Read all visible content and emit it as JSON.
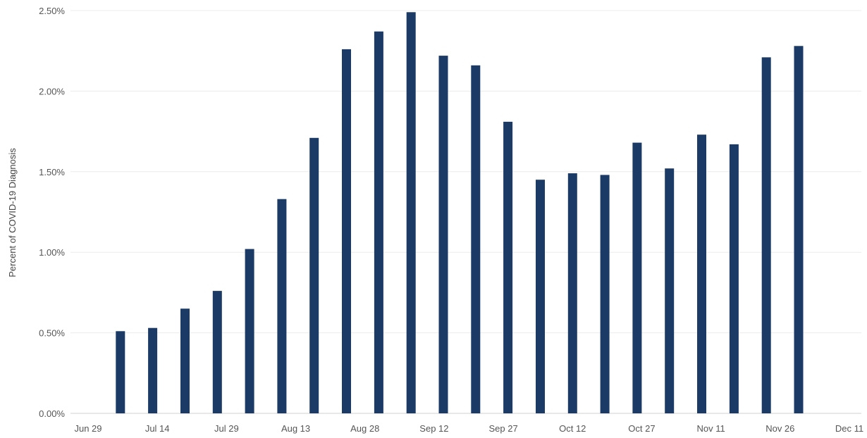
{
  "chart_data": {
    "type": "bar",
    "title": "",
    "xlabel": "",
    "ylabel": "Percent of COVID-19 Diagnosis",
    "y_ticks": [
      "0.00%",
      "0.50%",
      "1.00%",
      "1.50%",
      "2.00%",
      "2.50%"
    ],
    "x_ticks": [
      "Jun 29",
      "Jul 14",
      "Jul 29",
      "Aug 13",
      "Aug 28",
      "Sep 12",
      "Sep 27",
      "Oct 12",
      "Oct 27",
      "Nov 11",
      "Nov 26",
      "Dec 11"
    ],
    "ylim": [
      0,
      2.5
    ],
    "xlim": [
      "2020-06-29",
      "2020-12-11"
    ],
    "grid": true,
    "bar_color": "#1b3a66",
    "series": [
      {
        "x": [
          "2020-07-06",
          "2020-07-13",
          "2020-07-20",
          "2020-07-27",
          "2020-08-03",
          "2020-08-10",
          "2020-08-17",
          "2020-08-24",
          "2020-08-31",
          "2020-09-07",
          "2020-09-14",
          "2020-09-21",
          "2020-09-28",
          "2020-10-05",
          "2020-10-12",
          "2020-10-19",
          "2020-10-26",
          "2020-11-02",
          "2020-11-09",
          "2020-11-16",
          "2020-11-23",
          "2020-11-30"
        ],
        "values": [
          0.51,
          0.53,
          0.65,
          0.76,
          1.02,
          1.33,
          1.71,
          2.26,
          2.37,
          2.49,
          2.22,
          2.16,
          1.81,
          1.45,
          1.49,
          1.48,
          1.68,
          1.52,
          1.73,
          1.67,
          2.21,
          2.28
        ]
      }
    ]
  }
}
